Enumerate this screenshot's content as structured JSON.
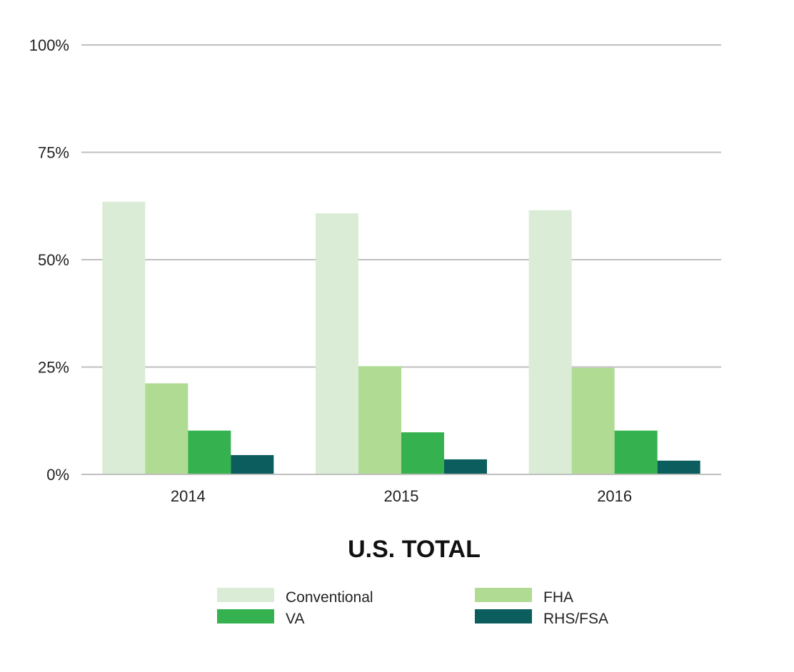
{
  "chart_data": {
    "type": "bar",
    "title": "U.S. TOTAL",
    "xlabel": "",
    "ylabel": "",
    "categories": [
      "2014",
      "2015",
      "2016"
    ],
    "series": [
      {
        "name": "Conventional",
        "color": "#DAECD6",
        "values": [
          63.5,
          60.8,
          61.5
        ]
      },
      {
        "name": "FHA",
        "color": "#AFDB93",
        "values": [
          21.2,
          25.2,
          24.8
        ]
      },
      {
        "name": "VA",
        "color": "#35B24F",
        "values": [
          10.2,
          9.8,
          10.2
        ]
      },
      {
        "name": "RHS/FSA",
        "color": "#0B5E5D",
        "values": [
          4.5,
          3.5,
          3.2
        ]
      }
    ],
    "ylim": [
      0,
      100
    ],
    "yticks": [
      0,
      25,
      50,
      75,
      100
    ],
    "ytick_labels": [
      "0%",
      "25%",
      "50%",
      "75%",
      "100%"
    ],
    "grid": true,
    "legend_position": "bottom",
    "legend_order": [
      "Conventional",
      "FHA",
      "VA",
      "RHS/FSA"
    ]
  }
}
